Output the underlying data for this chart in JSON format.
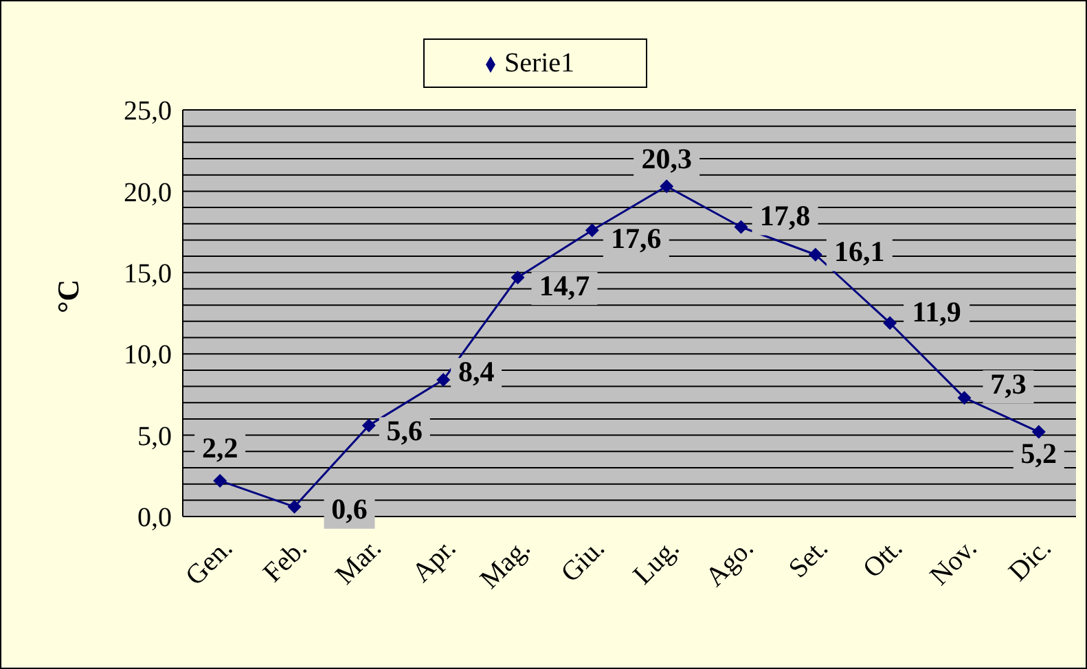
{
  "chart_data": {
    "type": "line",
    "ylabel": "°C",
    "categories": [
      "Gen.",
      "Feb.",
      "Mar.",
      "Apr.",
      "Mag.",
      "Giu.",
      "Lug.",
      "Ago.",
      "Set.",
      "Ott.",
      "Nov.",
      "Dic."
    ],
    "series": [
      {
        "name": "Serie1",
        "color": "#000080",
        "values": [
          2.2,
          0.6,
          5.6,
          8.4,
          14.7,
          17.6,
          20.3,
          17.8,
          16.1,
          11.9,
          7.3,
          5.2
        ],
        "value_labels": [
          "2,2",
          "0,6",
          "5,6",
          "8,4",
          "14,7",
          "17,6",
          "20,3",
          "17,8",
          "16,1",
          "11,9",
          "7,3",
          "5,2"
        ]
      }
    ],
    "ylim": [
      0,
      25
    ],
    "yticks": [
      {
        "value": 0,
        "label": "0,0"
      },
      {
        "value": 1,
        "label": null
      },
      {
        "value": 2,
        "label": null
      },
      {
        "value": 3,
        "label": null
      },
      {
        "value": 4,
        "label": null
      },
      {
        "value": 5,
        "label": "5,0"
      },
      {
        "value": 6,
        "label": null
      },
      {
        "value": 7,
        "label": null
      },
      {
        "value": 8,
        "label": null
      },
      {
        "value": 9,
        "label": null
      },
      {
        "value": 10,
        "label": "10,0"
      },
      {
        "value": 11,
        "label": null
      },
      {
        "value": 12,
        "label": null
      },
      {
        "value": 13,
        "label": null
      },
      {
        "value": 14,
        "label": null
      },
      {
        "value": 15,
        "label": "15,0"
      },
      {
        "value": 16,
        "label": null
      },
      {
        "value": 17,
        "label": null
      },
      {
        "value": 18,
        "label": null
      },
      {
        "value": 19,
        "label": null
      },
      {
        "value": 20,
        "label": "20,0"
      },
      {
        "value": 21,
        "label": null
      },
      {
        "value": 22,
        "label": null
      },
      {
        "value": 23,
        "label": null
      },
      {
        "value": 24,
        "label": null
      },
      {
        "value": 25,
        "label": "25,0"
      }
    ],
    "grid": "y",
    "legend": "top",
    "marker": "diamond",
    "line_style": "solid"
  }
}
